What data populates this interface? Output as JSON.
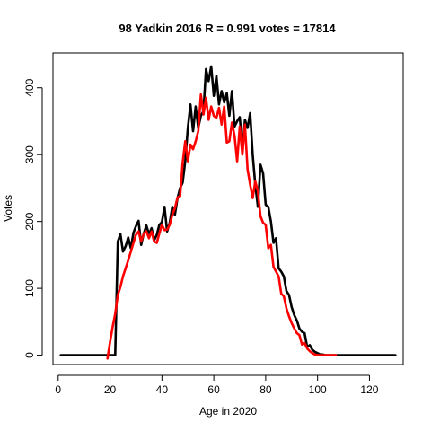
{
  "chart_data": {
    "type": "line",
    "title": "98 Yadkin 2016 R = 0.991 votes = 17814",
    "xlabel": "Age in 2020",
    "ylabel": "Votes",
    "xlim": [
      -2,
      133
    ],
    "ylim": [
      -14,
      452
    ],
    "xticks": [
      0,
      20,
      40,
      60,
      80,
      100,
      120
    ],
    "yticks": [
      0,
      100,
      200,
      300,
      400
    ],
    "grid": false,
    "series": [
      {
        "color": "#000000",
        "x": [
          1,
          2,
          3,
          4,
          5,
          6,
          7,
          8,
          9,
          10,
          11,
          12,
          13,
          14,
          15,
          16,
          17,
          18,
          19,
          20,
          21,
          22,
          23,
          24,
          25,
          26,
          27,
          28,
          29,
          30,
          31,
          32,
          33,
          34,
          35,
          36,
          37,
          38,
          39,
          40,
          41,
          42,
          43,
          44,
          45,
          46,
          47,
          48,
          49,
          50,
          51,
          52,
          53,
          54,
          55,
          56,
          57,
          58,
          59,
          60,
          61,
          62,
          63,
          64,
          65,
          66,
          67,
          68,
          69,
          70,
          71,
          72,
          73,
          74,
          75,
          76,
          77,
          78,
          79,
          80,
          81,
          82,
          83,
          84,
          85,
          86,
          87,
          88,
          89,
          90,
          91,
          92,
          93,
          94,
          95,
          96,
          97,
          98,
          99,
          100,
          101,
          102,
          103,
          104,
          105,
          106,
          107,
          108,
          109,
          110,
          111,
          112,
          113,
          114,
          115,
          116,
          117,
          118,
          119,
          120,
          121,
          122,
          123,
          124,
          125,
          126,
          127,
          128,
          129,
          130
        ],
        "y": [
          0,
          0,
          0,
          0,
          0,
          0,
          0,
          0,
          0,
          0,
          0,
          0,
          0,
          0,
          0,
          0,
          0,
          0,
          0,
          0,
          0,
          0,
          170,
          181,
          155,
          163,
          176,
          160,
          183,
          193,
          201,
          165,
          182,
          194,
          181,
          190,
          172,
          180,
          195,
          199,
          222,
          185,
          198,
          222,
          210,
          235,
          250,
          258,
          290,
          340,
          375,
          335,
          372,
          340,
          358,
          365,
          428,
          410,
          432,
          388,
          418,
          375,
          395,
          378,
          392,
          358,
          395,
          342,
          350,
          356,
          310,
          352,
          340,
          362,
          300,
          255,
          222,
          285,
          272,
          225,
          222,
          200,
          168,
          175,
          130,
          125,
          118,
          96,
          90,
          72,
          60,
          52,
          40,
          35,
          33,
          12,
          15,
          8,
          5,
          3,
          1,
          1,
          0,
          0,
          0,
          0,
          0,
          0,
          0,
          0,
          0,
          0,
          0,
          0,
          0,
          0,
          0,
          0,
          0,
          0,
          0,
          0,
          0,
          0,
          0,
          0,
          0,
          0,
          0,
          0
        ]
      },
      {
        "color": "#ff0000",
        "x": [
          19,
          20,
          21,
          22,
          23,
          24,
          25,
          26,
          27,
          28,
          29,
          30,
          31,
          32,
          33,
          34,
          35,
          36,
          37,
          38,
          39,
          40,
          41,
          42,
          43,
          44,
          45,
          46,
          47,
          48,
          49,
          50,
          51,
          52,
          53,
          54,
          55,
          56,
          57,
          58,
          59,
          60,
          61,
          62,
          63,
          64,
          65,
          66,
          67,
          68,
          69,
          70,
          71,
          72,
          73,
          74,
          75,
          76,
          77,
          78,
          79,
          80,
          81,
          82,
          83,
          84,
          85,
          86,
          87,
          88,
          89,
          90,
          91,
          92,
          93,
          94,
          95,
          96,
          97,
          98,
          99,
          100,
          101,
          102,
          103,
          104,
          105,
          106,
          107
        ],
        "y": [
          -5,
          20,
          42,
          62,
          90,
          102,
          118,
          130,
          142,
          155,
          168,
          180,
          185,
          170,
          182,
          185,
          175,
          185,
          170,
          168,
          182,
          195,
          187,
          188,
          195,
          210,
          220,
          236,
          238,
          288,
          320,
          290,
          315,
          308,
          320,
          335,
          390,
          360,
          385,
          352,
          372,
          358,
          355,
          370,
          345,
          372,
          318,
          320,
          348,
          328,
          290,
          342,
          300,
          345,
          278,
          255,
          235,
          260,
          245,
          208,
          198,
          195,
          160,
          165,
          132,
          125,
          118,
          92,
          88,
          70,
          58,
          48,
          40,
          33,
          30,
          16,
          18,
          10,
          6,
          3,
          1,
          0,
          0,
          0,
          0,
          0,
          0,
          0,
          0
        ]
      }
    ]
  }
}
